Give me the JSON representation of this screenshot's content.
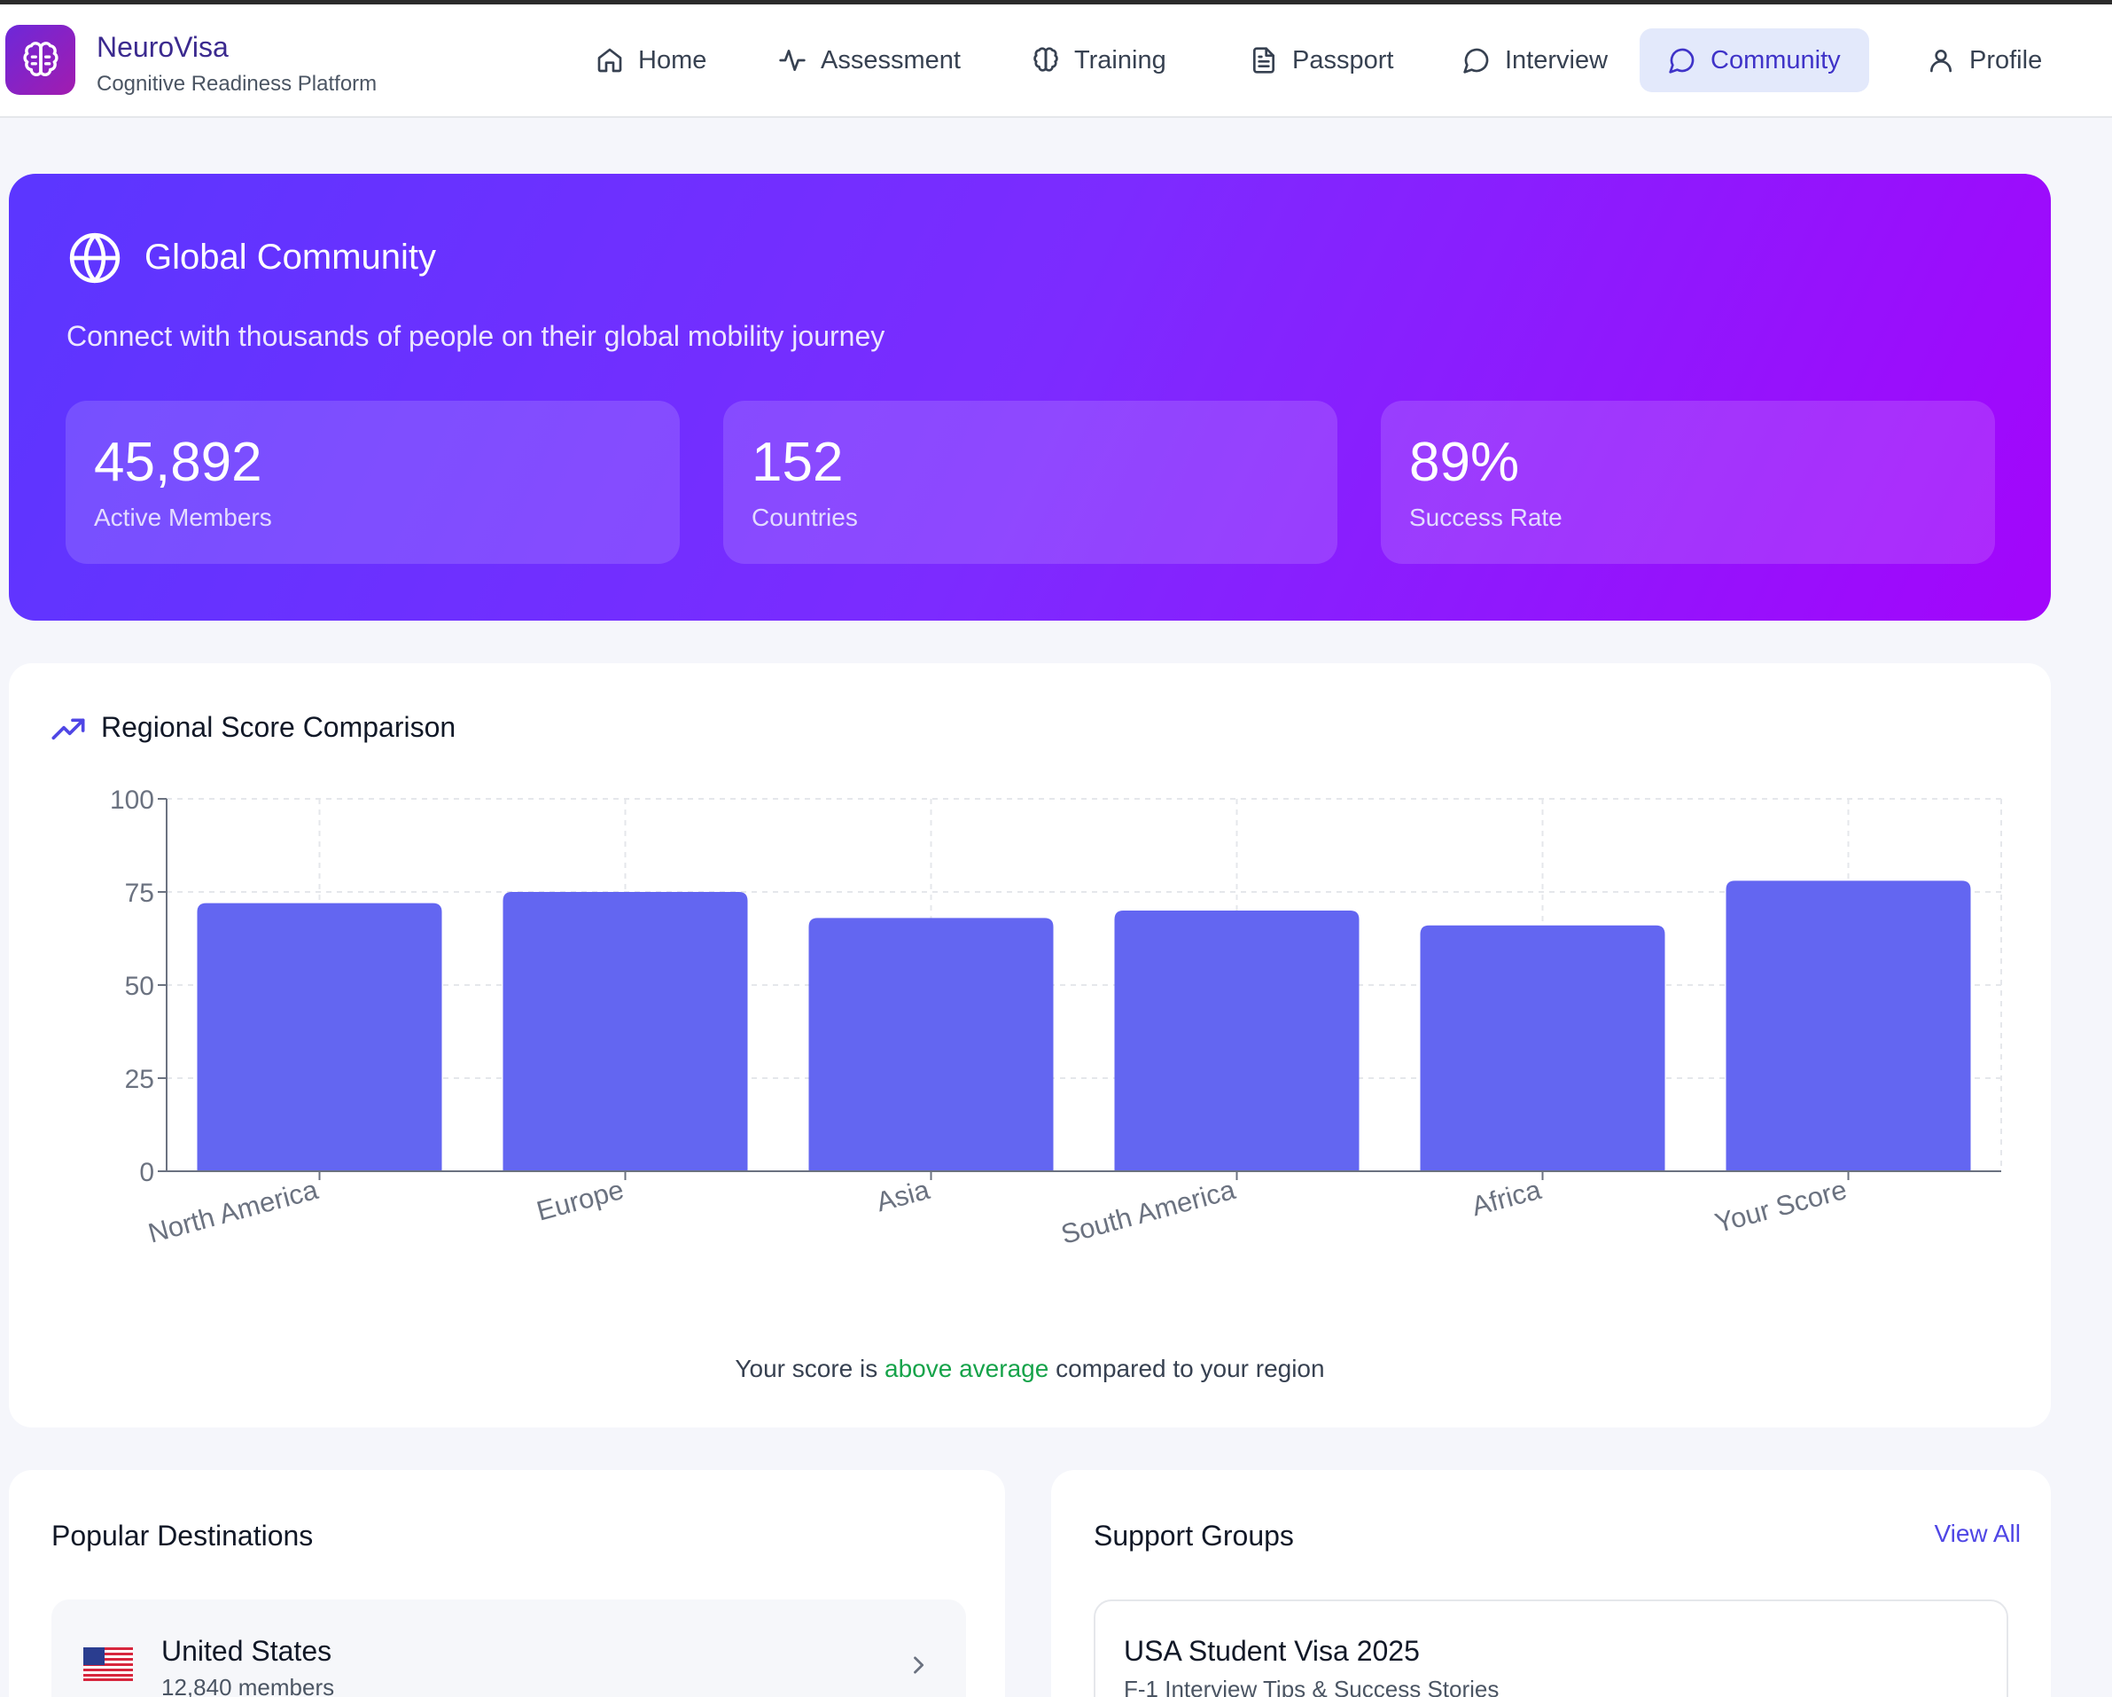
{
  "brand": {
    "name": "NeuroVisa",
    "subtitle": "Cognitive Readiness Platform"
  },
  "nav": {
    "items": [
      {
        "label": "Home",
        "icon": "home-icon"
      },
      {
        "label": "Assessment",
        "icon": "activity-icon"
      },
      {
        "label": "Training",
        "icon": "brain-icon"
      },
      {
        "label": "Passport",
        "icon": "document-icon"
      },
      {
        "label": "Interview",
        "icon": "chat-icon"
      },
      {
        "label": "Community",
        "icon": "chat-icon",
        "active": true
      },
      {
        "label": "Profile",
        "icon": "user-icon"
      }
    ]
  },
  "hero": {
    "title": "Global Community",
    "subtitle": "Connect with thousands of people on their global mobility journey",
    "stats": [
      {
        "value": "45,892",
        "label": "Active Members"
      },
      {
        "value": "152",
        "label": "Countries"
      },
      {
        "value": "89%",
        "label": "Success Rate"
      }
    ]
  },
  "chart_section": {
    "title": "Regional Score Comparison",
    "note_prefix": "Your score is ",
    "note_highlight": "above average",
    "note_suffix": " compared to your region"
  },
  "chart_data": {
    "type": "bar",
    "categories": [
      "North America",
      "Europe",
      "Asia",
      "South America",
      "Africa",
      "Your Score"
    ],
    "values": [
      72,
      75,
      68,
      70,
      66,
      78
    ],
    "yticks": [
      0,
      25,
      50,
      75,
      100
    ],
    "ylim": [
      0,
      100
    ],
    "grid": true,
    "bar_color": "#6366f1"
  },
  "destinations": {
    "title": "Popular Destinations",
    "items": [
      {
        "flag": "us-flag-icon",
        "name": "United States",
        "members": "12,840 members"
      }
    ]
  },
  "support_groups": {
    "title": "Support Groups",
    "view_all": "View All",
    "items": [
      {
        "name": "USA Student Visa 2025",
        "desc": "F-1 Interview Tips & Success Stories"
      }
    ]
  }
}
